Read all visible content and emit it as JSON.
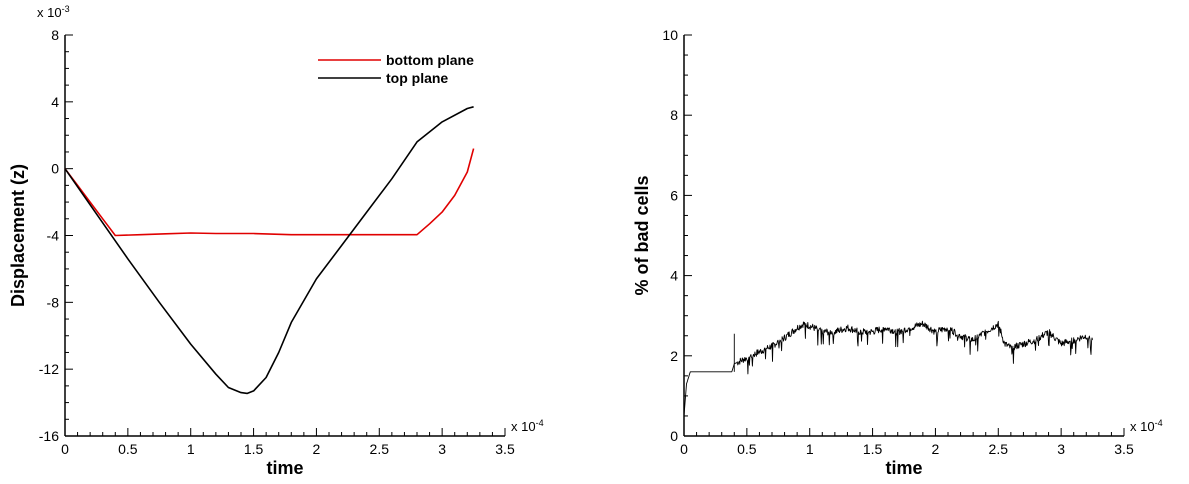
{
  "chart_data": [
    {
      "type": "line",
      "title": "",
      "xlabel": "time",
      "ylabel": "Displacement (z)",
      "x_multiplier_label": "x 10",
      "x_multiplier_exp": "-4",
      "y_multiplier_label": "x 10",
      "y_multiplier_exp": "-3",
      "xlim": [
        0,
        3.5
      ],
      "ylim": [
        -16,
        8
      ],
      "x_ticks": [
        0,
        0.5,
        1,
        1.5,
        2,
        2.5,
        3,
        3.5
      ],
      "x_tick_labels": [
        "0",
        "0.5",
        "1",
        "1.5",
        "2",
        "2.5",
        "3",
        "3.5"
      ],
      "y_ticks": [
        -16,
        -12,
        -8,
        -4,
        0,
        4,
        8
      ],
      "y_tick_labels": [
        "-16",
        "-12",
        "-8",
        "-4",
        "0",
        "4",
        "8"
      ],
      "legend_position": "top-right",
      "series": [
        {
          "name": "bottom plane",
          "color": "#e00000",
          "x": [
            0,
            0.1,
            0.2,
            0.3,
            0.4,
            0.6,
            0.8,
            1.0,
            1.2,
            1.5,
            1.8,
            2.0,
            2.3,
            2.6,
            2.8,
            2.9,
            3.0,
            3.1,
            3.2,
            3.25
          ],
          "y": [
            0,
            -1.0,
            -2.0,
            -3.0,
            -4.0,
            -3.95,
            -3.9,
            -3.85,
            -3.88,
            -3.88,
            -3.95,
            -3.95,
            -3.95,
            -3.95,
            -3.95,
            -3.3,
            -2.6,
            -1.6,
            -0.2,
            1.2
          ]
        },
        {
          "name": "top plane",
          "color": "#000000",
          "x": [
            0,
            0.25,
            0.5,
            0.75,
            1.0,
            1.2,
            1.3,
            1.4,
            1.45,
            1.5,
            1.6,
            1.7,
            1.8,
            2.0,
            2.2,
            2.4,
            2.6,
            2.8,
            3.0,
            3.2,
            3.25
          ],
          "y": [
            0,
            -2.7,
            -5.4,
            -8.0,
            -10.5,
            -12.3,
            -13.1,
            -13.4,
            -13.45,
            -13.3,
            -12.5,
            -11.0,
            -9.2,
            -6.6,
            -4.6,
            -2.6,
            -0.6,
            1.6,
            2.8,
            3.6,
            3.7
          ]
        }
      ]
    },
    {
      "type": "line",
      "title": "",
      "xlabel": "time",
      "ylabel": "% of bad cells",
      "x_multiplier_label": "x 10",
      "x_multiplier_exp": "-4",
      "xlim": [
        0,
        3.5
      ],
      "ylim": [
        0,
        10
      ],
      "x_ticks": [
        0,
        0.5,
        1,
        1.5,
        2,
        2.5,
        3,
        3.5
      ],
      "x_tick_labels": [
        "0",
        "0.5",
        "1",
        "1.5",
        "2",
        "2.5",
        "3",
        "3.5"
      ],
      "y_ticks": [
        0,
        2,
        4,
        6,
        8,
        10
      ],
      "y_tick_labels": [
        "0",
        "2",
        "4",
        "6",
        "8",
        "10"
      ],
      "legend_position": "none",
      "series": [
        {
          "color": "#000000",
          "x": [
            0,
            0.02,
            0.05,
            0.1,
            0.2,
            0.3,
            0.38,
            0.4,
            0.5,
            0.6,
            0.7,
            0.8,
            0.9,
            0.95,
            1.0,
            1.1,
            1.2,
            1.3,
            1.4,
            1.5,
            1.6,
            1.7,
            1.8,
            1.9,
            2.0,
            2.1,
            2.2,
            2.3,
            2.4,
            2.5,
            2.55,
            2.6,
            2.7,
            2.8,
            2.9,
            3.0,
            3.1,
            3.2,
            3.25
          ],
          "y": [
            0.5,
            1.3,
            1.6,
            1.6,
            1.6,
            1.6,
            1.6,
            1.8,
            1.95,
            2.1,
            2.25,
            2.45,
            2.7,
            2.8,
            2.75,
            2.6,
            2.6,
            2.7,
            2.6,
            2.6,
            2.7,
            2.6,
            2.7,
            2.8,
            2.6,
            2.7,
            2.5,
            2.4,
            2.6,
            2.8,
            2.3,
            2.2,
            2.3,
            2.4,
            2.6,
            2.3,
            2.4,
            2.5,
            2.4
          ]
        }
      ]
    }
  ]
}
